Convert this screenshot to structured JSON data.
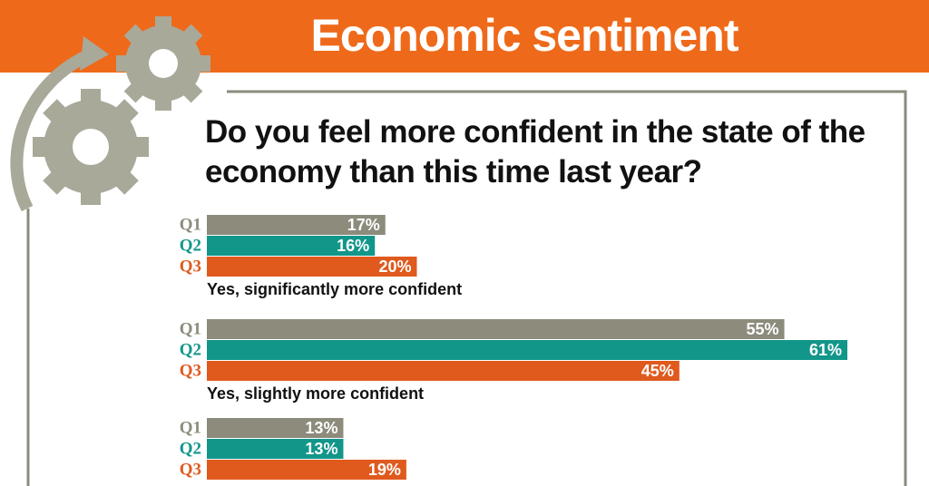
{
  "chart_data": {
    "type": "hbar",
    "title": "Economic sentiment",
    "subtitle": "Do you feel more confident in the state of the economy than this time last year?",
    "categories": [
      "Yes, significantly more confident",
      "Yes, slightly more confident",
      null
    ],
    "series": [
      {
        "name": "Q1",
        "color": "#8c8b7c",
        "values": [
          17,
          55,
          13
        ],
        "value_labels": [
          "17%",
          "55%",
          "13%"
        ]
      },
      {
        "name": "Q2",
        "color": "#12968a",
        "values": [
          16,
          61,
          13
        ],
        "value_labels": [
          "16%",
          "61%",
          "13%"
        ]
      },
      {
        "name": "Q3",
        "color": "#e05a1e",
        "values": [
          20,
          45,
          19
        ],
        "value_labels": [
          "20%",
          "45%",
          "19%"
        ]
      }
    ]
  }
}
